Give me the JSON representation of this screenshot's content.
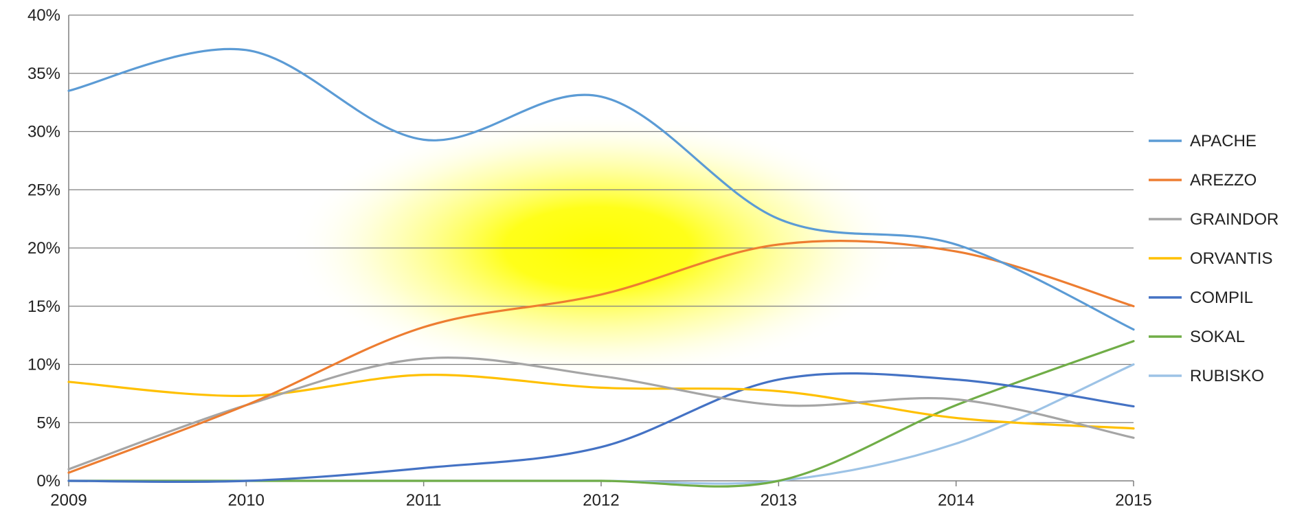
{
  "chart_data": {
    "type": "line",
    "smoothed": true,
    "x": [
      "2009",
      "2010",
      "2011",
      "2012",
      "2013",
      "2014",
      "2015"
    ],
    "ylim": [
      0,
      40
    ],
    "yticks": [
      0,
      5,
      10,
      15,
      20,
      25,
      30,
      35,
      40
    ],
    "ytick_labels": [
      "0%",
      "5%",
      "10%",
      "15%",
      "20%",
      "25%",
      "30%",
      "35%",
      "40%"
    ],
    "grid": true,
    "legend_position": "right",
    "background_highlight": "yellow glow behind center of plot",
    "series": [
      {
        "name": "APACHE",
        "color": "#5b9bd5",
        "values": [
          33.5,
          37.0,
          29.3,
          33.0,
          22.5,
          20.3,
          13.0
        ]
      },
      {
        "name": "AREZZO",
        "color": "#ed7d31",
        "values": [
          0.7,
          6.5,
          13.2,
          16.0,
          20.3,
          19.7,
          15.0
        ]
      },
      {
        "name": "GRAINDOR",
        "color": "#a5a5a5",
        "values": [
          1.0,
          6.5,
          10.5,
          9.0,
          6.5,
          7.0,
          3.7
        ]
      },
      {
        "name": "ORVANTIS",
        "color": "#ffc000",
        "values": [
          8.5,
          7.3,
          9.1,
          8.0,
          7.7,
          5.4,
          4.5
        ]
      },
      {
        "name": "COMPIL",
        "color": "#4472c4",
        "values": [
          0.0,
          0.0,
          1.1,
          2.9,
          8.7,
          8.7,
          6.4
        ]
      },
      {
        "name": "SOKAL",
        "color": "#70ad47",
        "values": [
          0.0,
          0.0,
          0.0,
          0.0,
          0.0,
          6.5,
          12.0
        ]
      },
      {
        "name": "RUBISKO",
        "color": "#9dc3e6",
        "values": [
          0.0,
          0.0,
          0.0,
          0.0,
          0.0,
          3.2,
          10.0
        ]
      }
    ]
  }
}
